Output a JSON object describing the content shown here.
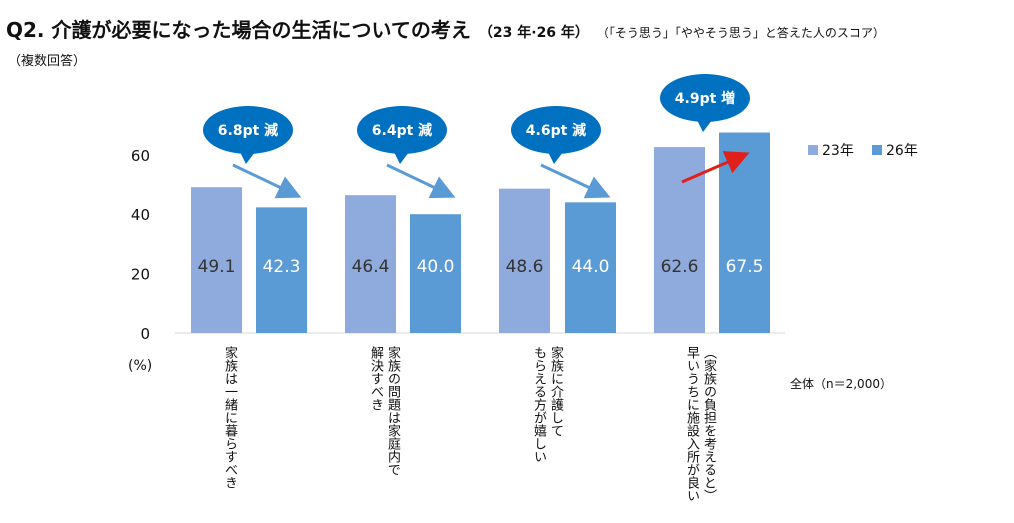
{
  "title": {
    "main": "Q2.  介護が必要になった場合の生活についての考え",
    "years": "（23 年·26 年）",
    "note": "（「そう思う」「ややそう思う」と答えた人のスコア）",
    "sub": "（複数回答）"
  },
  "unit_label": "(%)",
  "total_label": "全体（n＝2,000）",
  "colors": {
    "y23": "#8faadc",
    "y26": "#5b9bd5",
    "bubble": "#0070c0",
    "decrease_arrow": "#5b9bd5",
    "increase_arrow": "#e0201b"
  },
  "chart_data": {
    "type": "bar",
    "categories": [
      "家族は一緒に暮らすべき",
      "家族の問題は家庭内で解決すべき",
      "家族に介護してもらえる方が嬉しい",
      "（家族の負担を考えると）早いうちに施設入所が良い"
    ],
    "category_lines": [
      [
        "家族は一緒に暮らすべき"
      ],
      [
        "家族の問題は家庭内で",
        "解決すべき"
      ],
      [
        "家族に介護して",
        "もらえる方が嬉しい"
      ],
      [
        "（家族の負担を考えると）",
        "早いうちに施設入所が良い"
      ]
    ],
    "series": [
      {
        "name": "23年",
        "values": [
          49.1,
          46.4,
          48.6,
          62.6
        ]
      },
      {
        "name": "26年",
        "values": [
          42.3,
          40.0,
          44.0,
          67.5
        ]
      }
    ],
    "value_labels": [
      [
        "49.1",
        "46.4",
        "48.6",
        "62.6"
      ],
      [
        "42.3",
        "40.0",
        "44.0",
        "67.5"
      ]
    ],
    "yticks": [
      0,
      20,
      40,
      60
    ],
    "ylim": [
      0,
      70
    ],
    "changes": [
      "6.8pt 減",
      "6.4pt 減",
      "4.6pt 減",
      "4.9pt 増"
    ],
    "change_direction": [
      "down",
      "down",
      "down",
      "up"
    ],
    "legend_position": "right"
  }
}
